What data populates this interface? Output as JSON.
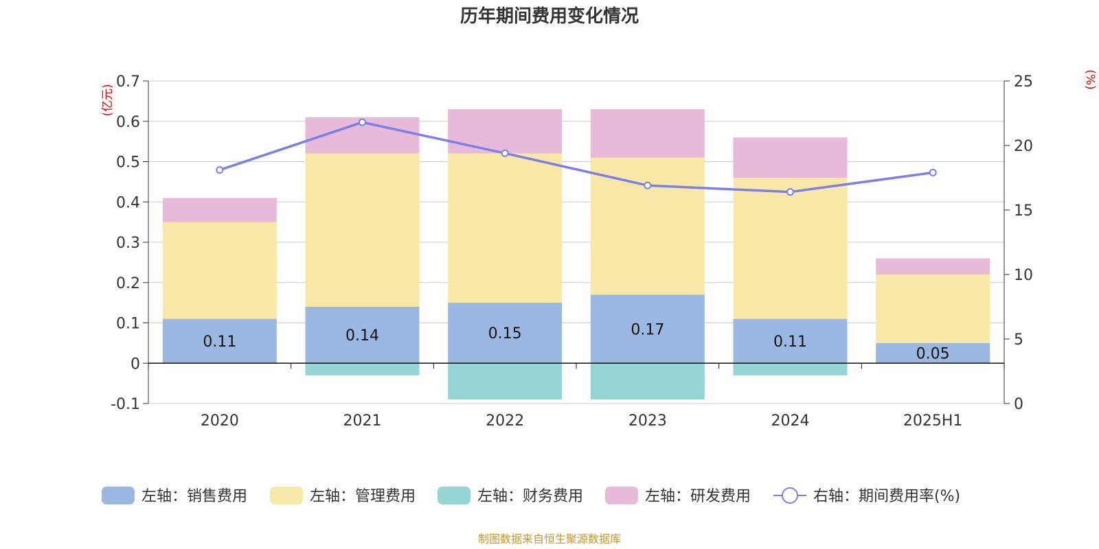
{
  "chart_data": {
    "type": "bar",
    "title": "历年期间费用变化情况",
    "categories": [
      "2020",
      "2021",
      "2022",
      "2023",
      "2024",
      "2025H1"
    ],
    "left_axis": {
      "unit": "(亿元)",
      "ylim": [
        -0.1,
        0.7
      ],
      "ticks": [
        -0.1,
        0,
        0.1,
        0.2,
        0.3,
        0.4,
        0.5,
        0.6,
        0.7
      ],
      "tick_labels": [
        "-0.1",
        "0",
        "0.1",
        "0.2",
        "0.3",
        "0.4",
        "0.5",
        "0.6",
        "0.7"
      ]
    },
    "right_axis": {
      "unit": "(%)",
      "ylim": [
        0,
        25
      ],
      "ticks": [
        0,
        5,
        10,
        15,
        20,
        25
      ],
      "tick_labels": [
        "0",
        "5",
        "10",
        "15",
        "20",
        "25"
      ]
    },
    "grid": true,
    "stacked": true,
    "legend_position": "bottom",
    "series": [
      {
        "name": "左轴：销售费用",
        "axis": "left",
        "type": "bar",
        "color": "#9bb8e2",
        "values": [
          0.11,
          0.14,
          0.15,
          0.17,
          0.11,
          0.05
        ],
        "labels": [
          "0.11",
          "0.14",
          "0.15",
          "0.17",
          "0.11",
          "0.05"
        ]
      },
      {
        "name": "左轴：管理费用",
        "axis": "left",
        "type": "bar",
        "color": "#f8e8a8",
        "values": [
          0.24,
          0.38,
          0.37,
          0.34,
          0.35,
          0.17
        ]
      },
      {
        "name": "左轴：财务费用",
        "axis": "left",
        "type": "bar",
        "color": "#96d5d5",
        "values": [
          0.0,
          -0.03,
          -0.09,
          -0.09,
          -0.03,
          0.0
        ]
      },
      {
        "name": "左轴：研发费用",
        "axis": "left",
        "type": "bar",
        "color": "#e8bada",
        "values": [
          0.06,
          0.09,
          0.11,
          0.12,
          0.1,
          0.04
        ]
      },
      {
        "name": "右轴：期间费用率(%)",
        "axis": "right",
        "type": "line",
        "color": "#7b7fe8",
        "values": [
          18.1,
          21.8,
          19.4,
          16.9,
          16.4,
          17.9
        ]
      }
    ],
    "source": "制图数据来自恒生聚源数据库"
  }
}
